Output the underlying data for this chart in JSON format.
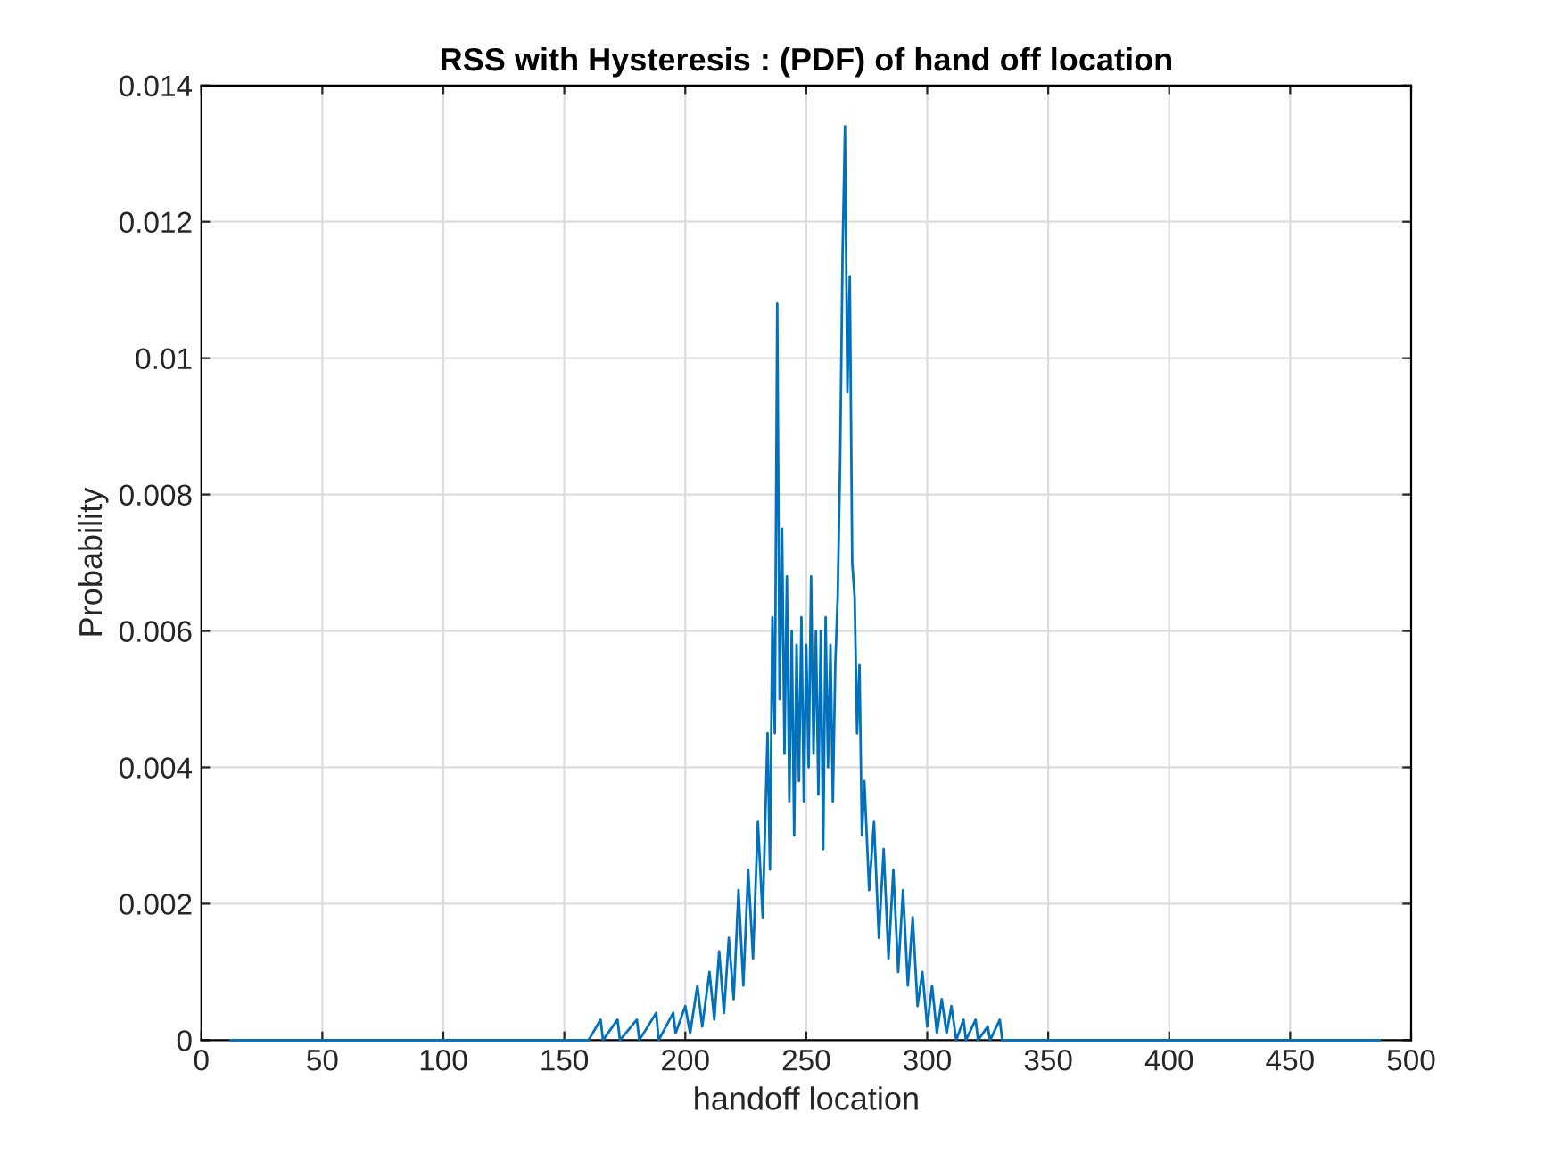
{
  "chart_data": {
    "type": "line",
    "title": "RSS with Hysteresis : (PDF) of hand off location",
    "xlabel": "handoff location",
    "ylabel": "Probability",
    "series": [
      {
        "color": "#0072bd",
        "x": [
          12,
          100,
          160,
          165,
          166,
          172,
          173,
          180,
          181,
          188,
          189,
          195,
          196,
          200,
          202,
          205,
          207,
          210,
          212,
          214,
          216,
          218,
          220,
          222,
          224,
          226,
          228,
          230,
          232,
          234,
          235,
          236,
          237,
          238,
          239,
          240,
          241,
          242,
          243,
          244,
          245,
          246,
          247,
          248,
          249,
          250,
          251,
          252,
          253,
          254,
          255,
          256,
          257,
          258,
          259,
          260,
          261,
          262,
          263,
          264,
          265,
          266,
          267,
          268,
          269,
          270,
          271,
          272,
          273,
          274,
          276,
          278,
          280,
          282,
          284,
          286,
          288,
          290,
          292,
          294,
          296,
          298,
          300,
          302,
          304,
          306,
          308,
          310,
          312,
          315,
          316,
          320,
          321,
          325,
          326,
          330,
          331,
          345,
          487
        ],
        "values": [
          0,
          0,
          0,
          0.0003,
          0,
          0.0003,
          0,
          0.0003,
          0,
          0.0004,
          0,
          0.0004,
          0.0001,
          0.0005,
          0.0001,
          0.0008,
          0.0002,
          0.001,
          0.0003,
          0.0013,
          0.0004,
          0.0015,
          0.0006,
          0.0022,
          0.0008,
          0.0025,
          0.0012,
          0.0032,
          0.0018,
          0.0045,
          0.0025,
          0.0062,
          0.0045,
          0.0108,
          0.005,
          0.0075,
          0.0042,
          0.0068,
          0.0035,
          0.006,
          0.003,
          0.0058,
          0.0038,
          0.0062,
          0.0035,
          0.0058,
          0.004,
          0.0068,
          0.0042,
          0.006,
          0.0036,
          0.006,
          0.0028,
          0.0062,
          0.004,
          0.0058,
          0.0035,
          0.0055,
          0.0065,
          0.0085,
          0.0115,
          0.0134,
          0.0095,
          0.0112,
          0.007,
          0.0065,
          0.0045,
          0.0055,
          0.003,
          0.0038,
          0.0022,
          0.0032,
          0.0015,
          0.0028,
          0.0012,
          0.0025,
          0.001,
          0.0022,
          0.0008,
          0.0018,
          0.0005,
          0.001,
          0.0002,
          0.0008,
          0.0001,
          0.0006,
          0.0001,
          0.0005,
          0,
          0.0003,
          0,
          0.0003,
          0,
          0.0002,
          0,
          0.0003,
          0,
          0,
          0
        ]
      }
    ],
    "xlim": [
      0,
      500
    ],
    "xticks": [
      0,
      50,
      100,
      150,
      200,
      250,
      300,
      350,
      400,
      450,
      500
    ],
    "ylim": [
      0,
      0.014
    ],
    "yticks": [
      0,
      0.002,
      0.004,
      0.006,
      0.008,
      0.01,
      0.012,
      0.014
    ],
    "grid": true,
    "marker": "none",
    "line_style": "solid"
  }
}
